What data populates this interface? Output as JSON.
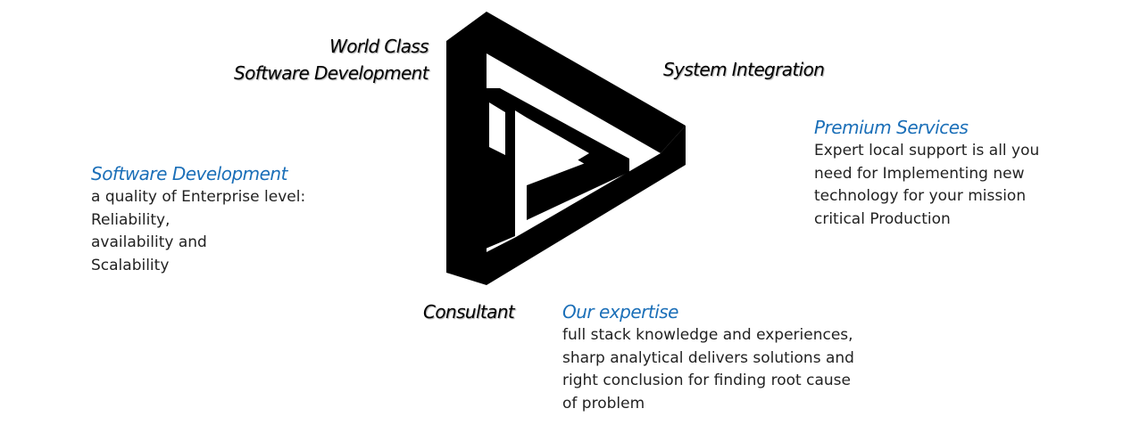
{
  "corner_labels": {
    "top_left_line1": "World Class",
    "top_left_line2": "Software Development",
    "top_right": "System Integration",
    "bottom": "Consultant"
  },
  "blocks": {
    "software_development": {
      "title": "Software Development",
      "lines": [
        "a quality of Enterprise level:",
        "Reliability,",
        "availability and",
        "Scalability"
      ]
    },
    "premium_services": {
      "title": "Premium Services",
      "lines": [
        "Expert local support is all you",
        "need for Implementing new",
        "technology for your mission",
        "critical Production"
      ]
    },
    "our_expertise": {
      "title": "Our expertise",
      "lines": [
        "full stack knowledge and experiences,",
        "sharp analytical delivers solutions and",
        "right conclusion for finding root cause",
        "of problem"
      ]
    }
  },
  "colors": {
    "accent": "#1b6fb8",
    "logo": "#000000",
    "text": "#222222"
  }
}
